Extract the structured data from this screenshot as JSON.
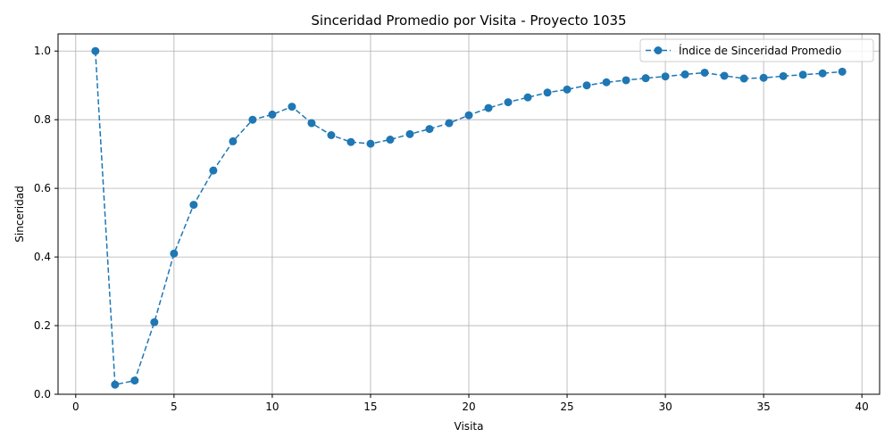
{
  "chart_data": {
    "type": "line",
    "title": "Sinceridad Promedio por Visita - Proyecto 1035",
    "xlabel": "Visita",
    "ylabel": "Sinceridad",
    "xlim": [
      -0.9,
      40.9
    ],
    "ylim": [
      0.0,
      1.05
    ],
    "xticks": [
      0,
      5,
      10,
      15,
      20,
      25,
      30,
      35,
      40
    ],
    "xtick_labels": [
      "0",
      "5",
      "10",
      "15",
      "20",
      "25",
      "30",
      "35",
      "40"
    ],
    "yticks": [
      0.0,
      0.2,
      0.4,
      0.6,
      0.8,
      1.0
    ],
    "ytick_labels": [
      "0.0",
      "0.2",
      "0.4",
      "0.6",
      "0.8",
      "1.0"
    ],
    "grid": true,
    "legend_position": "top-right",
    "series": [
      {
        "name": "Índice de Sinceridad Promedio",
        "color": "#1f77b4",
        "line_style": "dashed",
        "marker": "circle",
        "x": [
          1,
          2,
          3,
          4,
          5,
          6,
          7,
          8,
          9,
          10,
          11,
          12,
          13,
          14,
          15,
          16,
          17,
          18,
          19,
          20,
          21,
          22,
          23,
          24,
          25,
          26,
          27,
          28,
          29,
          30,
          31,
          32,
          33,
          34,
          35,
          36,
          37,
          38,
          39
        ],
        "y": [
          1.0,
          0.028,
          0.04,
          0.21,
          0.41,
          0.552,
          0.652,
          0.737,
          0.8,
          0.815,
          0.838,
          0.79,
          0.755,
          0.735,
          0.73,
          0.742,
          0.758,
          0.773,
          0.79,
          0.813,
          0.834,
          0.851,
          0.865,
          0.879,
          0.888,
          0.9,
          0.909,
          0.915,
          0.921,
          0.926,
          0.932,
          0.937,
          0.928,
          0.92,
          0.922,
          0.927,
          0.931,
          0.935,
          0.94
        ]
      }
    ]
  }
}
